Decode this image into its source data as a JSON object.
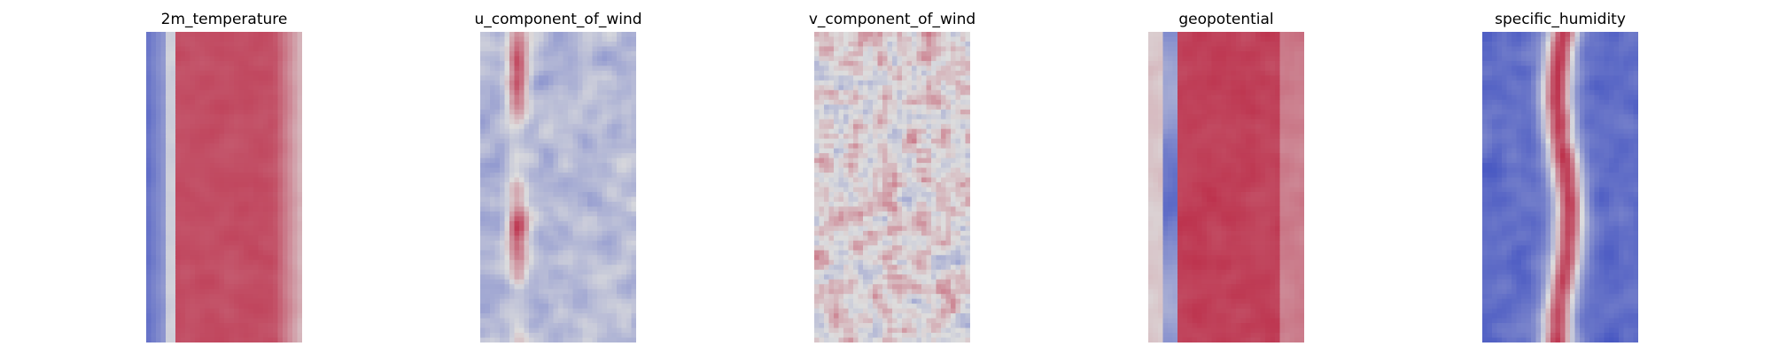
{
  "chart_data": [
    {
      "type": "heatmap",
      "title": "2m_temperature",
      "colormap": "coolwarm",
      "axes": "off",
      "grid": false
    },
    {
      "type": "heatmap",
      "title": "u_component_of_wind",
      "colormap": "coolwarm",
      "axes": "off",
      "grid": false
    },
    {
      "type": "heatmap",
      "title": "v_component_of_wind",
      "colormap": "coolwarm",
      "axes": "off",
      "grid": false
    },
    {
      "type": "heatmap",
      "title": "geopotential",
      "colormap": "coolwarm",
      "axes": "off",
      "grid": false
    },
    {
      "type": "heatmap",
      "title": "specific_humidity",
      "colormap": "coolwarm",
      "axes": "off",
      "grid": false
    }
  ],
  "colors": {
    "cold": "#3b4cc0",
    "neutral": "#dddddd",
    "warm": "#b40426"
  }
}
